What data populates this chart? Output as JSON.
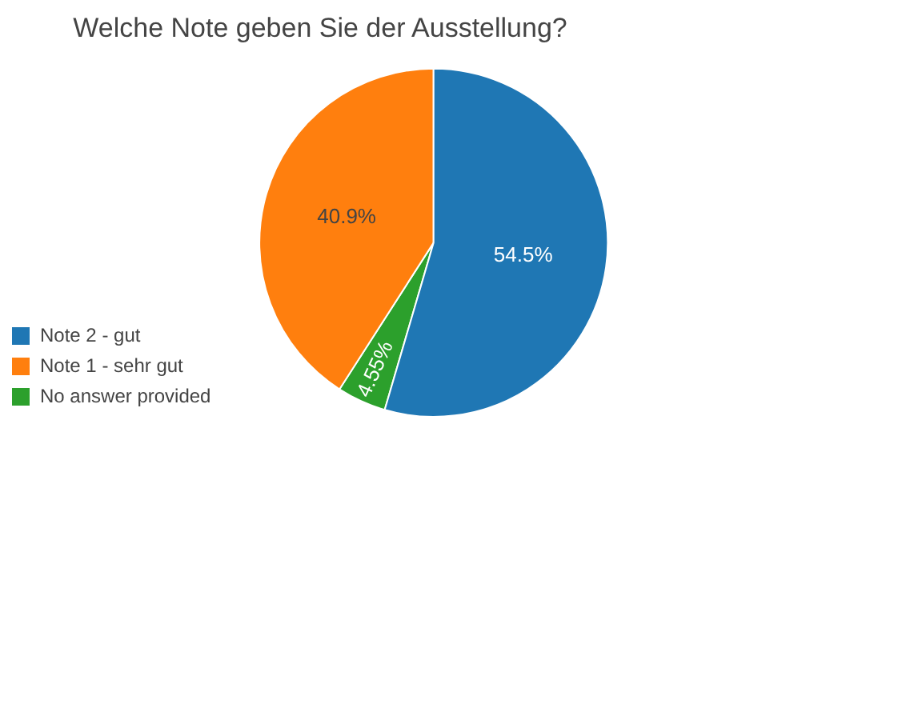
{
  "chart_data": {
    "type": "pie",
    "title": "Welche Note geben Sie der Ausstellung?",
    "categories": [
      "Note 2 - gut",
      "Note 1 - sehr gut",
      "No answer provided"
    ],
    "values": [
      54.5,
      40.9,
      4.55
    ],
    "colors": [
      "#1f77b4",
      "#ff7f0e",
      "#2ca02c"
    ],
    "value_labels": [
      "54.5%",
      "40.9%",
      "4.55%"
    ],
    "legend": "bottom left"
  }
}
